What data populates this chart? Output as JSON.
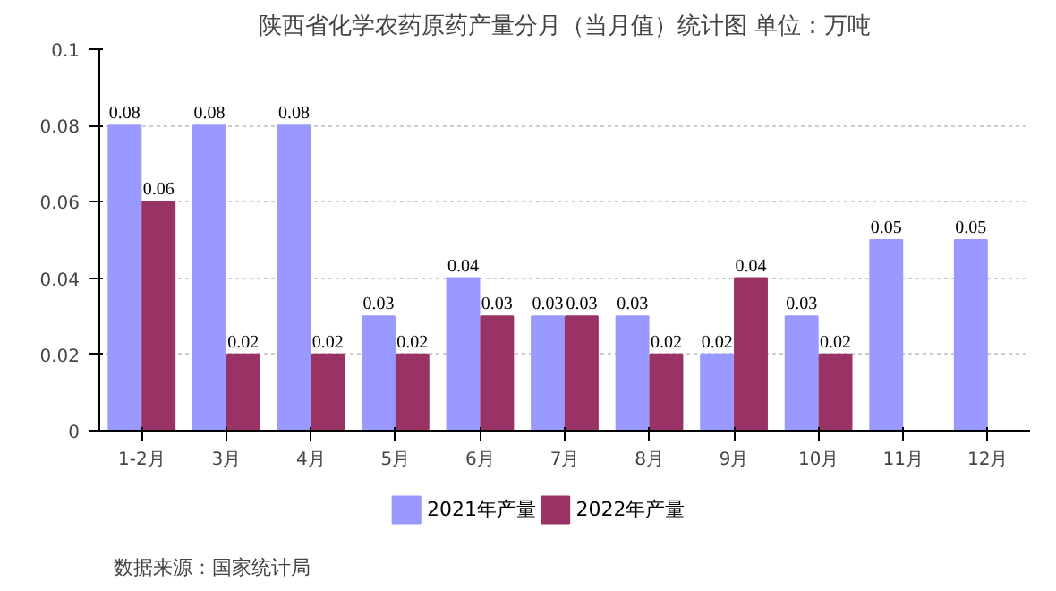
{
  "chart_data": {
    "type": "bar",
    "title": "陕西省化学农药原药产量分月（当月值）统计图 单位：万吨",
    "categories": [
      "1-2月",
      "3月",
      "4月",
      "5月",
      "6月",
      "7月",
      "8月",
      "9月",
      "10月",
      "11月",
      "12月"
    ],
    "series": [
      {
        "name": "2021年产量",
        "color": "#9999ff",
        "values": [
          0.08,
          0.08,
          0.08,
          0.03,
          0.04,
          0.03,
          0.03,
          0.02,
          0.03,
          0.05,
          0.05
        ]
      },
      {
        "name": "2022年产量",
        "color": "#993366",
        "values": [
          0.06,
          0.02,
          0.02,
          0.02,
          0.03,
          0.03,
          0.02,
          0.04,
          0.02,
          null,
          null
        ]
      }
    ],
    "ylim": [
      0,
      0.1
    ],
    "yticks": [
      0,
      0.02,
      0.04,
      0.06,
      0.08,
      0.1
    ],
    "grid": "y",
    "legend": "bottom",
    "data_labels": true,
    "annotations": [
      "数据来源：国家统计局"
    ]
  }
}
